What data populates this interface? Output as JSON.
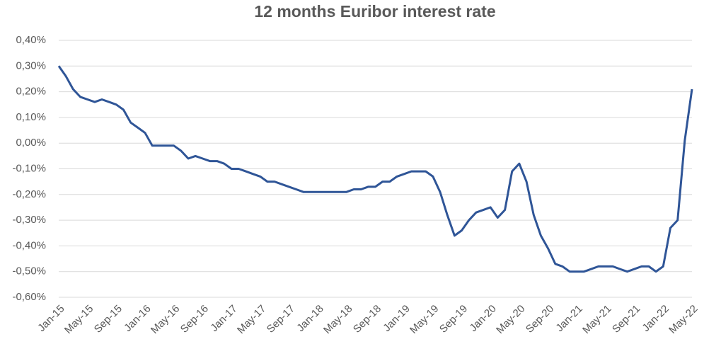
{
  "chart_data": {
    "type": "line",
    "title": "12 months Euribor interest rate",
    "categories": [
      "Jan-15",
      null,
      null,
      null,
      "May-15",
      null,
      null,
      null,
      "Sep-15",
      null,
      null,
      null,
      "Jan-16",
      null,
      null,
      null,
      "May-16",
      null,
      null,
      null,
      "Sep-16",
      null,
      null,
      null,
      "Jan-17",
      null,
      null,
      null,
      "May-17",
      null,
      null,
      null,
      "Sep-17",
      null,
      null,
      null,
      "Jan-18",
      null,
      null,
      null,
      "May-18",
      null,
      null,
      null,
      "Sep-18",
      null,
      null,
      null,
      "Jan-19",
      null,
      null,
      null,
      "May-19",
      null,
      null,
      null,
      "Sep-19",
      null,
      null,
      null,
      "Jan-20",
      null,
      null,
      null,
      "May-20",
      null,
      null,
      null,
      "Sep-20",
      null,
      null,
      null,
      "Jan-21",
      null,
      null,
      null,
      "May-21",
      null,
      null,
      null,
      "Sep-21",
      null,
      null,
      null,
      "Jan-22",
      null,
      null,
      null,
      "May-22"
    ],
    "series": [
      {
        "color": "#2f5597",
        "values": [
          0.3,
          0.26,
          0.21,
          0.18,
          0.17,
          0.16,
          0.17,
          0.16,
          0.15,
          0.13,
          0.08,
          0.06,
          0.04,
          -0.01,
          -0.01,
          -0.01,
          -0.01,
          -0.03,
          -0.06,
          -0.05,
          -0.06,
          -0.07,
          -0.07,
          -0.08,
          -0.1,
          -0.1,
          -0.11,
          -0.12,
          -0.13,
          -0.15,
          -0.15,
          -0.16,
          -0.17,
          -0.18,
          -0.19,
          -0.19,
          -0.19,
          -0.19,
          -0.19,
          -0.19,
          -0.19,
          -0.18,
          -0.18,
          -0.17,
          -0.17,
          -0.15,
          -0.15,
          -0.13,
          -0.12,
          -0.11,
          -0.11,
          -0.11,
          -0.13,
          -0.19,
          -0.28,
          -0.36,
          -0.34,
          -0.3,
          -0.27,
          -0.26,
          -0.25,
          -0.29,
          -0.26,
          -0.11,
          -0.08,
          -0.15,
          -0.28,
          -0.36,
          -0.41,
          -0.47,
          -0.48,
          -0.5,
          -0.5,
          -0.5,
          -0.49,
          -0.48,
          -0.48,
          -0.48,
          -0.49,
          -0.5,
          -0.49,
          -0.48,
          -0.48,
          -0.5,
          -0.48,
          -0.33,
          -0.3,
          0.01,
          0.21
        ]
      }
    ],
    "ylim": [
      -0.6,
      0.4
    ],
    "yticks": [
      {
        "value": 0.4,
        "label": "0,40%"
      },
      {
        "value": 0.3,
        "label": "0,30%"
      },
      {
        "value": 0.2,
        "label": "0,20%"
      },
      {
        "value": 0.1,
        "label": "0,10%"
      },
      {
        "value": 0,
        "label": "0,00%"
      },
      {
        "value": -0.1,
        "label": "-0,10%"
      },
      {
        "value": -0.2,
        "label": "-0,20%"
      },
      {
        "value": -0.3,
        "label": "-0,30%"
      },
      {
        "value": -0.4,
        "label": "-0,40%"
      },
      {
        "value": -0.5,
        "label": "-0,50%"
      },
      {
        "value": -0.6,
        "label": "-0,60%"
      }
    ],
    "grid": true
  }
}
